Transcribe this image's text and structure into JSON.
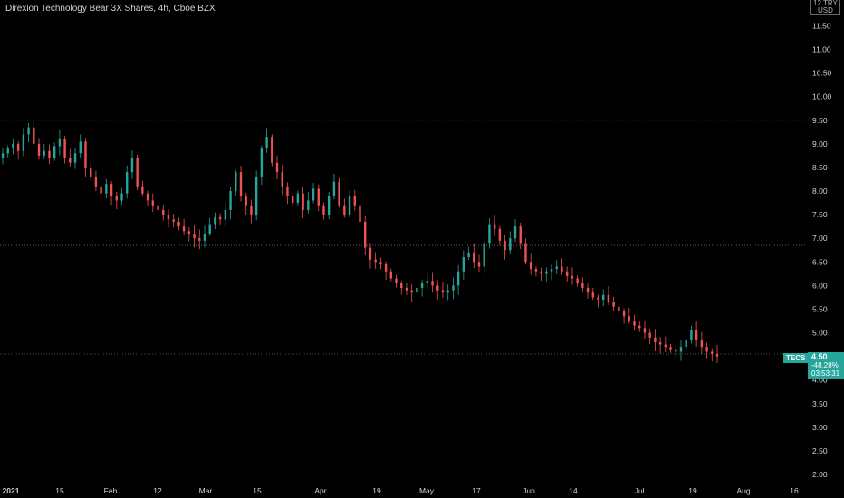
{
  "header": {
    "title": "Direxion Technology Bear 3X Shares, 4h, Cboe BZX",
    "currency": "USD",
    "currency_top": "12 TRY"
  },
  "price_label": {
    "symbol": "TECS",
    "last": "4.50",
    "change": "-48.28%",
    "countdown": "03:53:31"
  },
  "colors": {
    "up": "#26a69a",
    "down": "#ef5350",
    "background": "#000000",
    "axis_text": "#d1d4dc"
  },
  "chart_data": {
    "type": "candlestick",
    "title": "Direxion Technology Bear 3X Shares, 4h, Cboe BZX",
    "y_axis": {
      "ticks": [
        "11.50",
        "11.00",
        "10.50",
        "10.00",
        "9.50",
        "9.00",
        "8.50",
        "8.00",
        "7.50",
        "7.00",
        "6.50",
        "6.00",
        "5.50",
        "5.00",
        "4.50",
        "4.00",
        "3.50",
        "3.00",
        "2.50",
        "2.00"
      ],
      "ylim": [
        1.8,
        12.0
      ],
      "position": "right"
    },
    "x_axis": {
      "ticks": [
        "2021",
        "15",
        "Feb",
        "12",
        "Mar",
        "15",
        "Apr",
        "19",
        "May",
        "17",
        "Jun",
        "14",
        "Jul",
        "19",
        "Aug",
        "16"
      ]
    },
    "horizontal_lines": [
      9.5,
      6.85,
      4.55
    ],
    "close_series": [
      8.8,
      8.9,
      9.0,
      8.85,
      9.2,
      9.35,
      9.0,
      8.75,
      8.85,
      8.7,
      8.95,
      9.1,
      8.7,
      8.6,
      8.8,
      9.05,
      8.5,
      8.3,
      8.1,
      7.95,
      8.15,
      7.9,
      7.8,
      7.95,
      8.4,
      8.7,
      8.1,
      7.95,
      7.8,
      7.7,
      7.6,
      7.5,
      7.4,
      7.35,
      7.25,
      7.15,
      7.1,
      7.0,
      6.95,
      7.1,
      7.3,
      7.45,
      7.4,
      7.6,
      8.0,
      8.4,
      7.9,
      7.7,
      7.5,
      8.3,
      8.9,
      9.15,
      8.6,
      8.4,
      8.1,
      7.9,
      7.75,
      7.95,
      7.6,
      7.8,
      8.05,
      7.7,
      7.5,
      7.9,
      8.2,
      7.7,
      7.5,
      7.9,
      7.7,
      7.35,
      6.8,
      6.55,
      6.5,
      6.45,
      6.3,
      6.15,
      6.05,
      5.95,
      5.9,
      5.85,
      5.95,
      6.05,
      6.1,
      6.0,
      5.9,
      5.85,
      5.9,
      6.0,
      6.3,
      6.6,
      6.7,
      6.5,
      6.4,
      6.9,
      7.3,
      7.2,
      6.95,
      6.75,
      7.0,
      7.25,
      6.9,
      6.5,
      6.35,
      6.3,
      6.25,
      6.3,
      6.35,
      6.4,
      6.3,
      6.2,
      6.15,
      6.05,
      5.95,
      5.85,
      5.75,
      5.7,
      5.8,
      5.65,
      5.55,
      5.45,
      5.35,
      5.25,
      5.15,
      5.1,
      5.0,
      4.9,
      4.8,
      4.75,
      4.7,
      4.65,
      4.6,
      4.7,
      4.85,
      5.05,
      4.85,
      4.7,
      4.6,
      4.55,
      4.5
    ],
    "last_value": 4.5,
    "change_percent": -48.28
  }
}
